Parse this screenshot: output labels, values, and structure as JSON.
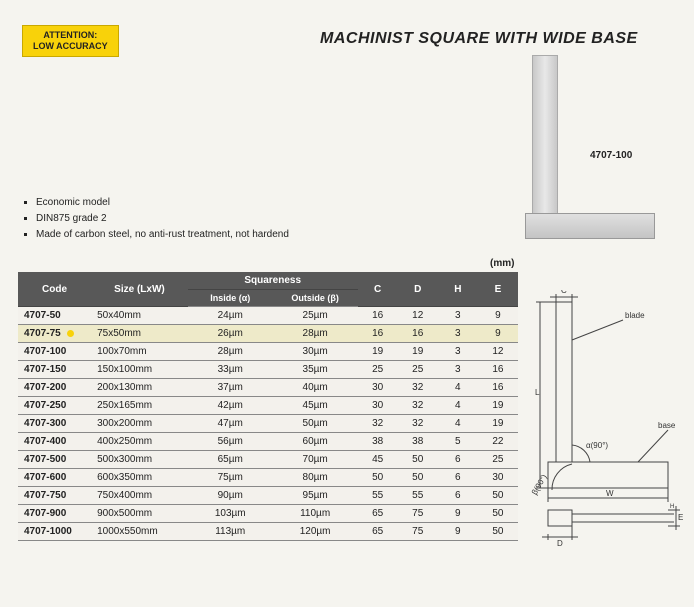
{
  "badge": {
    "line1": "ATTENTION:",
    "line2": "LOW ACCURACY"
  },
  "title": "MACHINIST SQUARE WITH WIDE BASE",
  "product_label": "4707-100",
  "bullets": [
    "Economic model",
    "DIN875 grade 2",
    "Made of carbon steel, no anti-rust treatment, not hardend"
  ],
  "unit": "(mm)",
  "table": {
    "headers": {
      "code": "Code",
      "size": "Size (LxW)",
      "squareness": "Squareness",
      "inside": "Inside (α)",
      "outside": "Outside (β)",
      "c": "C",
      "d": "D",
      "h": "H",
      "e": "E"
    },
    "rows": [
      {
        "code": "4707-50",
        "size": "50x40mm",
        "in": "24µm",
        "out": "25µm",
        "c": "16",
        "d": "12",
        "h": "3",
        "e": "9",
        "hl": false
      },
      {
        "code": "4707-75",
        "size": "75x50mm",
        "in": "26µm",
        "out": "28µm",
        "c": "16",
        "d": "16",
        "h": "3",
        "e": "9",
        "hl": true
      },
      {
        "code": "4707-100",
        "size": "100x70mm",
        "in": "28µm",
        "out": "30µm",
        "c": "19",
        "d": "19",
        "h": "3",
        "e": "12",
        "hl": false
      },
      {
        "code": "4707-150",
        "size": "150x100mm",
        "in": "33µm",
        "out": "35µm",
        "c": "25",
        "d": "25",
        "h": "3",
        "e": "16",
        "hl": false
      },
      {
        "code": "4707-200",
        "size": "200x130mm",
        "in": "37µm",
        "out": "40µm",
        "c": "30",
        "d": "32",
        "h": "4",
        "e": "16",
        "hl": false
      },
      {
        "code": "4707-250",
        "size": "250x165mm",
        "in": "42µm",
        "out": "45µm",
        "c": "30",
        "d": "32",
        "h": "4",
        "e": "19",
        "hl": false
      },
      {
        "code": "4707-300",
        "size": "300x200mm",
        "in": "47µm",
        "out": "50µm",
        "c": "32",
        "d": "32",
        "h": "4",
        "e": "19",
        "hl": false
      },
      {
        "code": "4707-400",
        "size": "400x250mm",
        "in": "56µm",
        "out": "60µm",
        "c": "38",
        "d": "38",
        "h": "5",
        "e": "22",
        "hl": false
      },
      {
        "code": "4707-500",
        "size": "500x300mm",
        "in": "65µm",
        "out": "70µm",
        "c": "45",
        "d": "50",
        "h": "6",
        "e": "25",
        "hl": false
      },
      {
        "code": "4707-600",
        "size": "600x350mm",
        "in": "75µm",
        "out": "80µm",
        "c": "50",
        "d": "50",
        "h": "6",
        "e": "30",
        "hl": false
      },
      {
        "code": "4707-750",
        "size": "750x400mm",
        "in": "90µm",
        "out": "95µm",
        "c": "55",
        "d": "55",
        "h": "6",
        "e": "50",
        "hl": false
      },
      {
        "code": "4707-900",
        "size": "900x500mm",
        "in": "103µm",
        "out": "110µm",
        "c": "65",
        "d": "75",
        "h": "9",
        "e": "50",
        "hl": false
      },
      {
        "code": "4707-1000",
        "size": "1000x550mm",
        "in": "113µm",
        "out": "120µm",
        "c": "65",
        "d": "75",
        "h": "9",
        "e": "50",
        "hl": false
      }
    ]
  },
  "diagram": {
    "labels": {
      "c": "C",
      "blade": "blade",
      "base": "base",
      "alpha": "α(90°)",
      "beta": "β(90°)",
      "w": "W",
      "h": "H",
      "d": "D",
      "e": "E",
      "L": "L"
    },
    "stroke": "#444",
    "text_color": "#333",
    "font_size": 8
  },
  "colors": {
    "badge_bg": "#f8d20a",
    "badge_border": "#c9a800",
    "page_bg": "#f5f4ef",
    "table_header_bg": "#585858",
    "table_header_fg": "#ffffff",
    "row_border": "#888888"
  }
}
